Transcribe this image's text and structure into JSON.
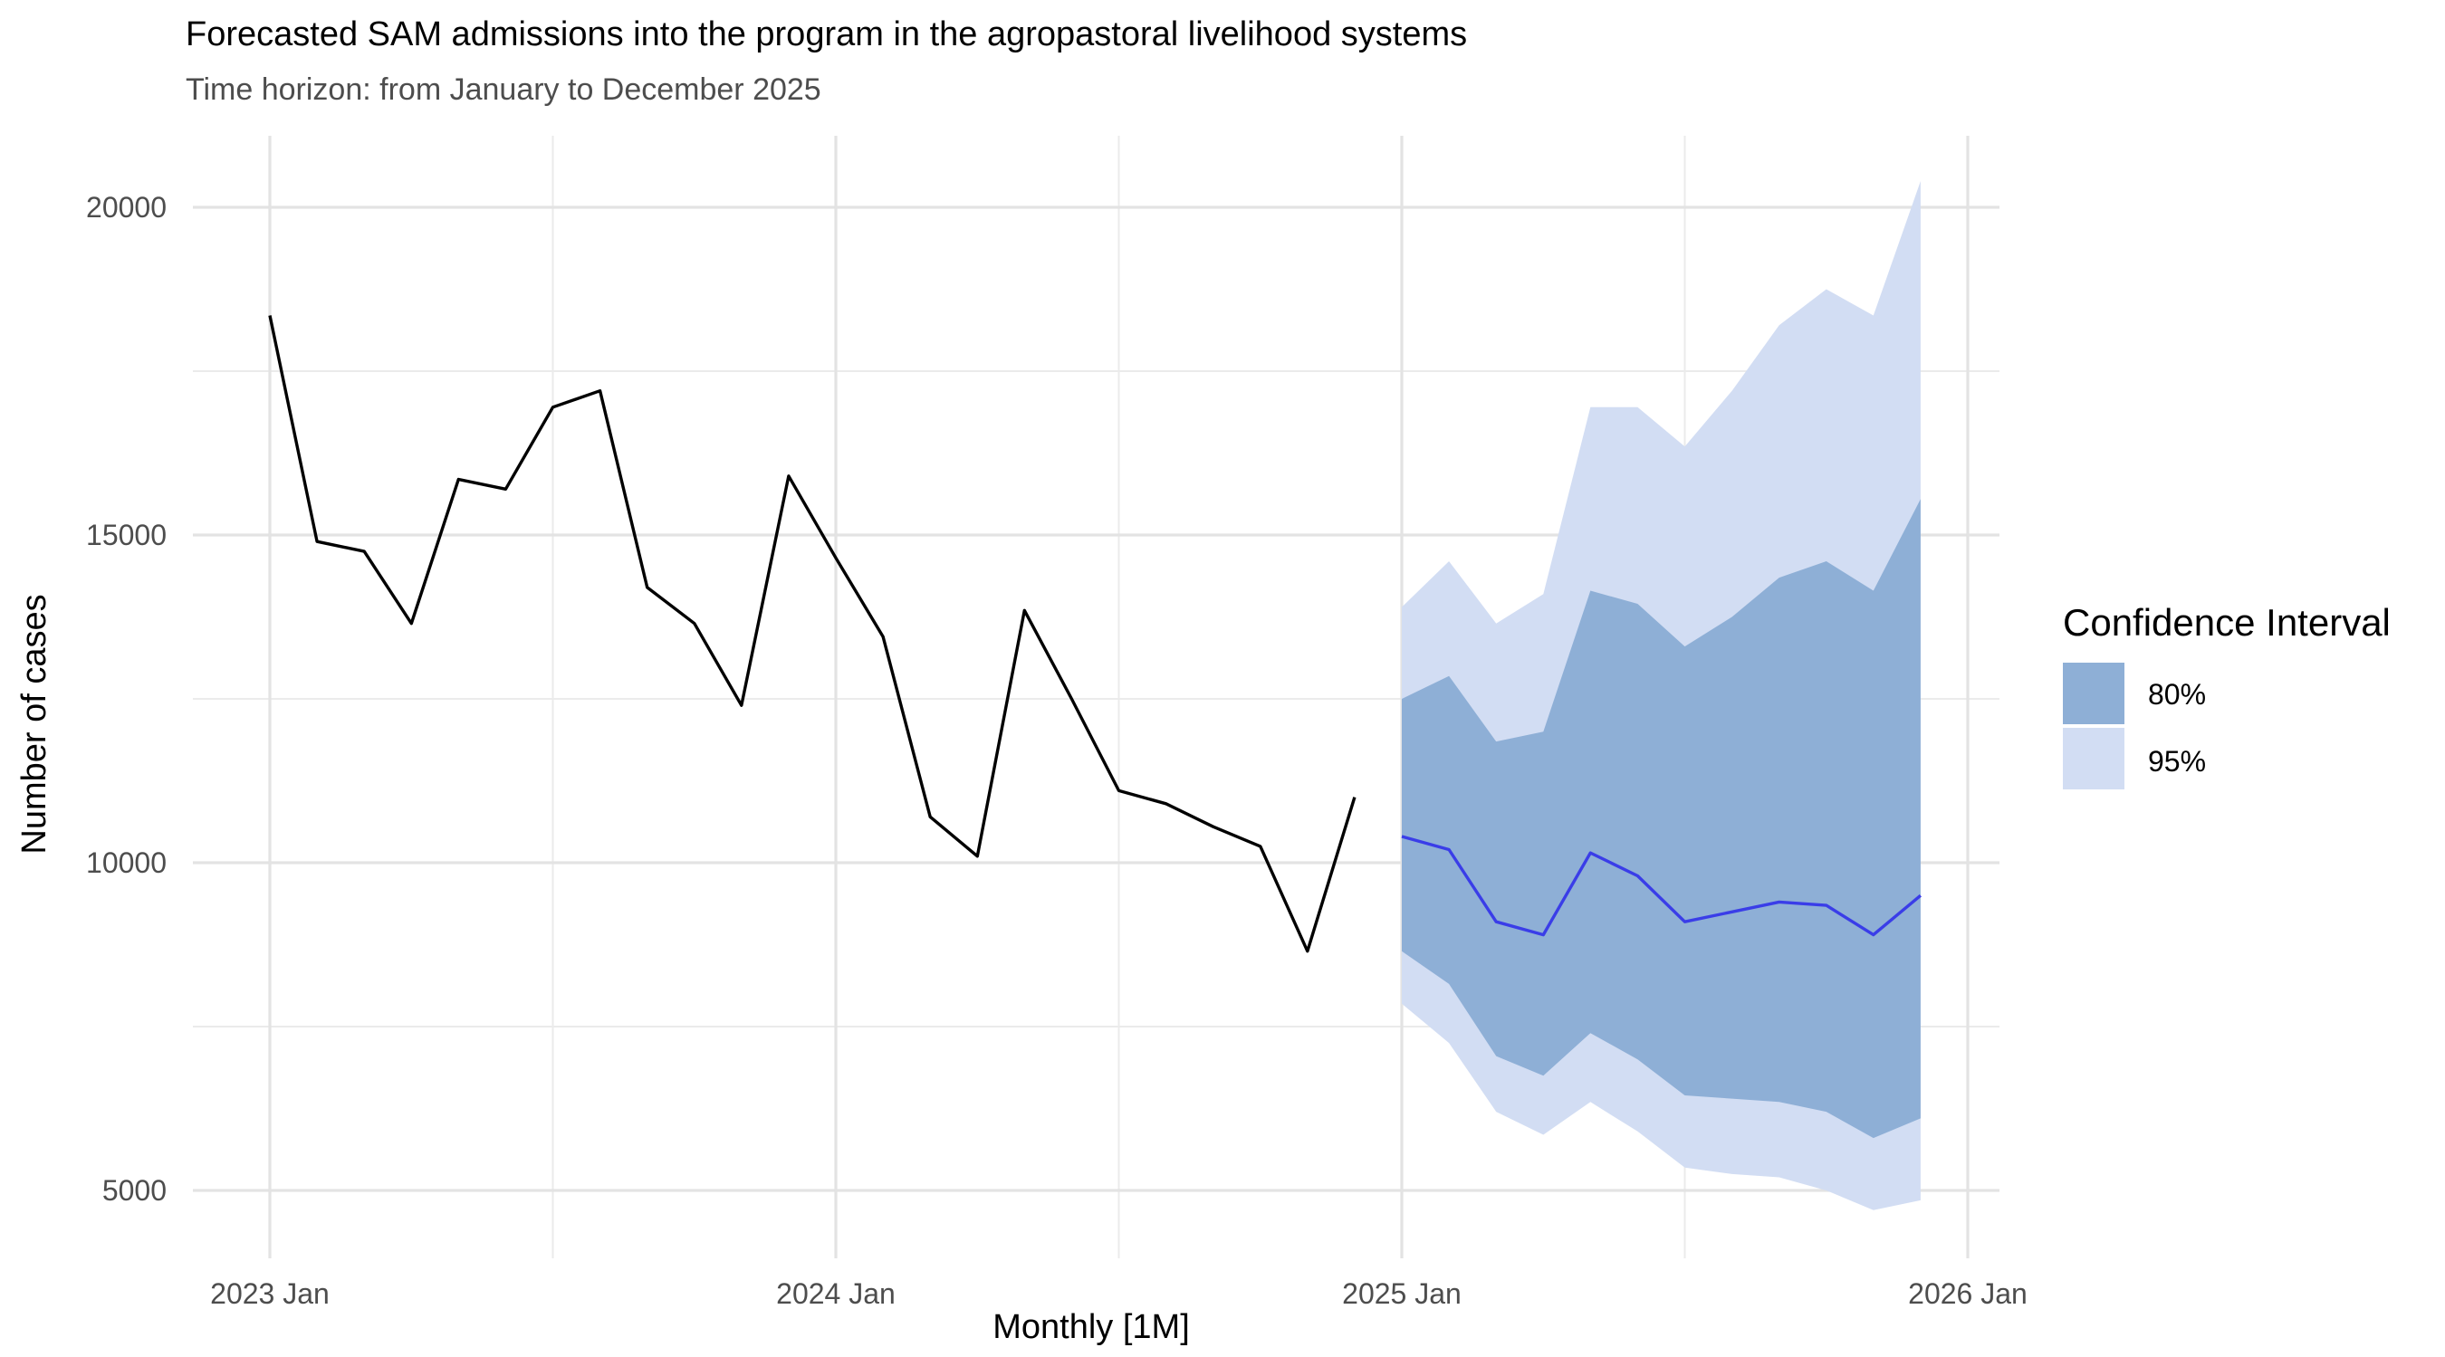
{
  "chart_data": {
    "type": "line",
    "title": "Forecasted SAM admissions into the program in the agropastoral livelihood systems",
    "subtitle": "Time horizon: from January to December 2025",
    "xlabel": "Monthly [1M]",
    "ylabel": "Number of cases",
    "xlim": [
      "2022-11",
      "2026-01"
    ],
    "ylim": [
      4000,
      21000
    ],
    "x_ticks": [
      {
        "value": "2023-01",
        "label": "2023 Jan"
      },
      {
        "value": "2024-01",
        "label": "2024 Jan"
      },
      {
        "value": "2025-01",
        "label": "2025 Jan"
      },
      {
        "value": "2026-01",
        "label": "2026 Jan"
      }
    ],
    "y_ticks": [
      5000,
      10000,
      15000,
      20000
    ],
    "grid": true,
    "legend": {
      "title": "Confidence Interval",
      "position": "right",
      "entries": [
        {
          "label": "80%",
          "color": "#8eafd6"
        },
        {
          "label": "95%",
          "color": "#d2ddf3"
        }
      ]
    },
    "observed": {
      "color": "#000000",
      "x": [
        "2023-01",
        "2023-02",
        "2023-03",
        "2023-04",
        "2023-05",
        "2023-06",
        "2023-07",
        "2023-08",
        "2023-09",
        "2023-10",
        "2023-11",
        "2023-12",
        "2024-01",
        "2024-02",
        "2024-03",
        "2024-04",
        "2024-05",
        "2024-06",
        "2024-07",
        "2024-08",
        "2024-09",
        "2024-10",
        "2024-11",
        "2024-12"
      ],
      "y": [
        18350,
        14900,
        14750,
        13650,
        15850,
        15700,
        16950,
        17200,
        14200,
        13650,
        12400,
        15900,
        14650,
        13450,
        10700,
        10100,
        13850,
        12500,
        11100,
        10900,
        10550,
        10250,
        8650,
        11000
      ]
    },
    "forecast": {
      "color": "#3a3de8",
      "x": [
        "2025-01",
        "2025-02",
        "2025-03",
        "2025-04",
        "2025-05",
        "2025-06",
        "2025-07",
        "2025-08",
        "2025-09",
        "2025-10",
        "2025-11",
        "2025-12"
      ],
      "mean": [
        10400,
        10200,
        9100,
        8900,
        10150,
        9800,
        9100,
        9250,
        9400,
        9350,
        8900,
        9500
      ],
      "lo80": [
        8650,
        8150,
        7050,
        6750,
        7400,
        7000,
        6450,
        6400,
        6350,
        6200,
        5800,
        6100
      ],
      "hi80": [
        12500,
        12850,
        11850,
        12000,
        14150,
        13950,
        13300,
        13750,
        14350,
        14600,
        14150,
        15550
      ],
      "lo95": [
        7850,
        7250,
        6200,
        5850,
        6350,
        5900,
        5350,
        5250,
        5200,
        5000,
        4700,
        4850
      ],
      "hi95": [
        13900,
        14600,
        13650,
        14100,
        16950,
        16950,
        16350,
        17200,
        18200,
        18750,
        18350,
        20400
      ]
    }
  }
}
